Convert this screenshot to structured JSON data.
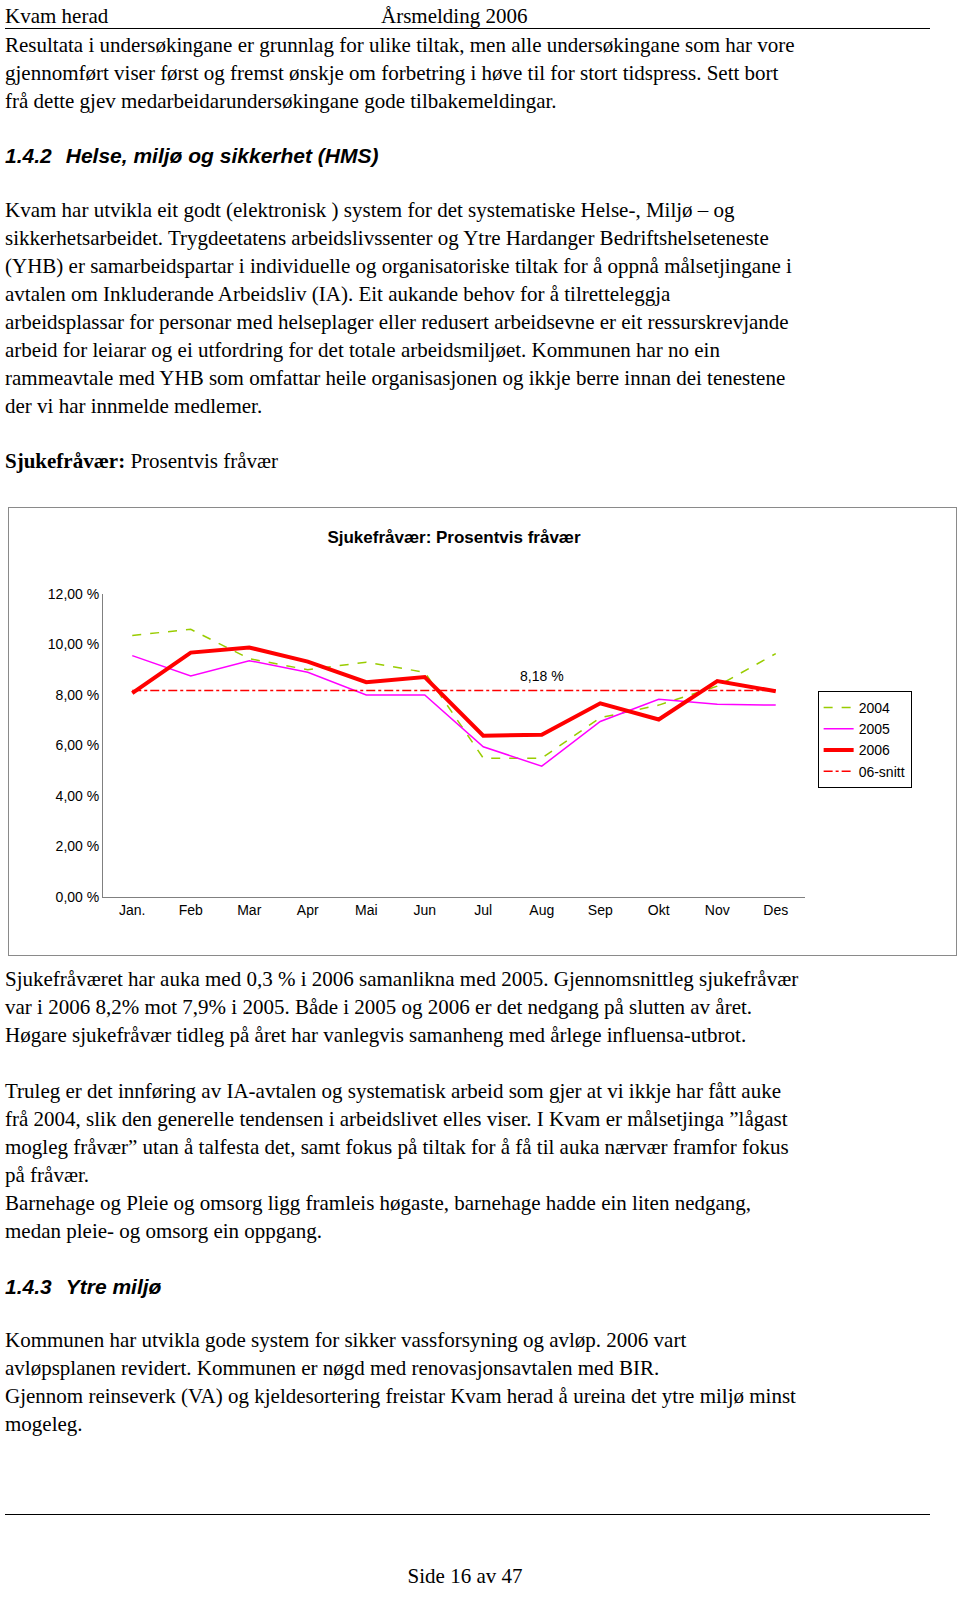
{
  "header": {
    "left": "Kvam herad",
    "center": "Årsmelding 2006"
  },
  "blocks_before_chart": [
    {
      "type": "paragraph",
      "lines": [
        "Resultata i undersøkingane er grunnlag for ulike tiltak, men alle undersøkingane som har vore",
        "gjennomført viser først og fremst ønskje om forbetring i høve til for stort tidspress. Sett bort",
        "frå dette gjev medarbeidarundersøkingane gode tilbakemeldingar."
      ]
    },
    {
      "type": "heading",
      "number": "1.4.2",
      "text": "Helse, miljø og sikkerhet (HMS)"
    },
    {
      "type": "paragraph",
      "lines": [
        "Kvam har utvikla eit godt (elektronisk ) system for det systematiske Helse-, Miljø – og",
        "sikkerhetsarbeidet. Trygdeetatens arbeidslivssenter og Ytre Hardanger Bedriftshelseteneste",
        "(YHB) er samarbeidspartar i individuelle og organisatoriske tiltak for å oppnå målsetjingane i",
        "avtalen om Inkluderande Arbeidsliv  (IA). Eit aukande behov for å tilretteleggja",
        "arbeidsplassar for personar med helseplager eller redusert arbeidsevne er eit ressurskrevjande",
        "arbeid for leiarar og ei utfordring for det totale arbeidsmiljøet. Kommunen har no ein",
        "rammeavtale med YHB som omfattar heile organisasjonen og ikkje berre innan dei tenestene",
        "der vi har innmelde medlemer."
      ]
    },
    {
      "type": "label",
      "bold": "Sjukefråvær:",
      "text": "Prosentvis fråvær"
    }
  ],
  "chart_data": {
    "type": "line",
    "title": "Sjukefråvær: Prosentvis fråvær",
    "categories": [
      "Jan.",
      "Feb",
      "Mar",
      "Apr",
      "Mai",
      "Jun",
      "Jul",
      "Aug",
      "Sep",
      "Okt",
      "Nov",
      "Des"
    ],
    "series": [
      {
        "name": "2004",
        "color": "#99cc00",
        "line_style": "dashed",
        "values": [
          10.36,
          10.6,
          9.44,
          9.0,
          9.3,
          8.9,
          5.5,
          5.5,
          7.1,
          7.6,
          8.35,
          9.64
        ]
      },
      {
        "name": "2005",
        "color": "#ff00ff",
        "line_style": "solid",
        "values": [
          9.56,
          8.75,
          9.36,
          8.9,
          8.0,
          8.0,
          5.95,
          5.18,
          6.95,
          7.83,
          7.63,
          7.6
        ]
      },
      {
        "name": "2006",
        "color": "#ff0000",
        "line_style": "thick",
        "values": [
          8.07,
          9.68,
          9.88,
          9.32,
          8.51,
          8.71,
          6.39,
          6.43,
          7.67,
          7.03,
          8.55,
          8.15
        ]
      },
      {
        "name": "06-snitt",
        "color": "#ff0000",
        "line_style": "dashdot",
        "values": [
          8.18,
          8.18,
          8.18,
          8.18,
          8.18,
          8.18,
          8.18,
          8.18,
          8.18,
          8.18,
          8.18,
          8.18
        ]
      }
    ],
    "annotations": [
      {
        "text": "8,18 %",
        "category": "Aug",
        "y": 8.18
      }
    ],
    "ylim": [
      0,
      12
    ],
    "yticks": [
      {
        "value": 0,
        "label": "0,00 %"
      },
      {
        "value": 2,
        "label": "2,00 %"
      },
      {
        "value": 4,
        "label": "4,00 %"
      },
      {
        "value": 6,
        "label": "6,00 %"
      },
      {
        "value": 8,
        "label": "8,00 %"
      },
      {
        "value": 10,
        "label": "10,00 %"
      },
      {
        "value": 12,
        "label": "12,00 %"
      }
    ],
    "grid": false,
    "legend": "right"
  },
  "blocks_after_chart": [
    {
      "type": "paragraph",
      "lines": [
        "Sjukefråværet har auka med 0,3 % i 2006 samanlikna med 2005. Gjennomsnittleg sjukefråvær",
        "var i 2006 8,2% mot 7,9% i 2005. Både i 2005 og 2006 er det nedgang på slutten av året.",
        "Høgare sjukefråvær tidleg på året har vanlegvis samanheng med årlege influensa-utbrot."
      ]
    },
    {
      "type": "paragraph",
      "lines": [
        "Truleg er det innføring av IA-avtalen og systematisk arbeid som gjer at vi ikkje har fått auke",
        "frå 2004, slik den generelle tendensen i arbeidslivet elles viser. I Kvam er målsetjinga ”lågast",
        "mogleg fråvær” utan å talfesta det, samt fokus på  tiltak for å få til auka nærvær framfor fokus",
        "på fråvær."
      ]
    },
    {
      "type": "paragraph",
      "lines": [
        "Barnehage og Pleie og omsorg ligg framleis høgaste, barnehage hadde ein liten nedgang,",
        "medan pleie- og omsorg ein oppgang."
      ]
    },
    {
      "type": "heading",
      "number": "1.4.3",
      "text": "Ytre miljø"
    },
    {
      "type": "paragraph",
      "lines": [
        "Kommunen har utvikla gode system for sikker vassforsyning og avløp. 2006 vart",
        "avløpsplanen revidert. Kommunen er nøgd med renovasjonsavtalen med BIR.",
        "Gjennom reinseverk (VA) og kjeldesortering freistar Kvam herad å ureina det ytre miljø minst",
        "mogeleg."
      ]
    }
  ],
  "footer": "Side 16 av 47"
}
